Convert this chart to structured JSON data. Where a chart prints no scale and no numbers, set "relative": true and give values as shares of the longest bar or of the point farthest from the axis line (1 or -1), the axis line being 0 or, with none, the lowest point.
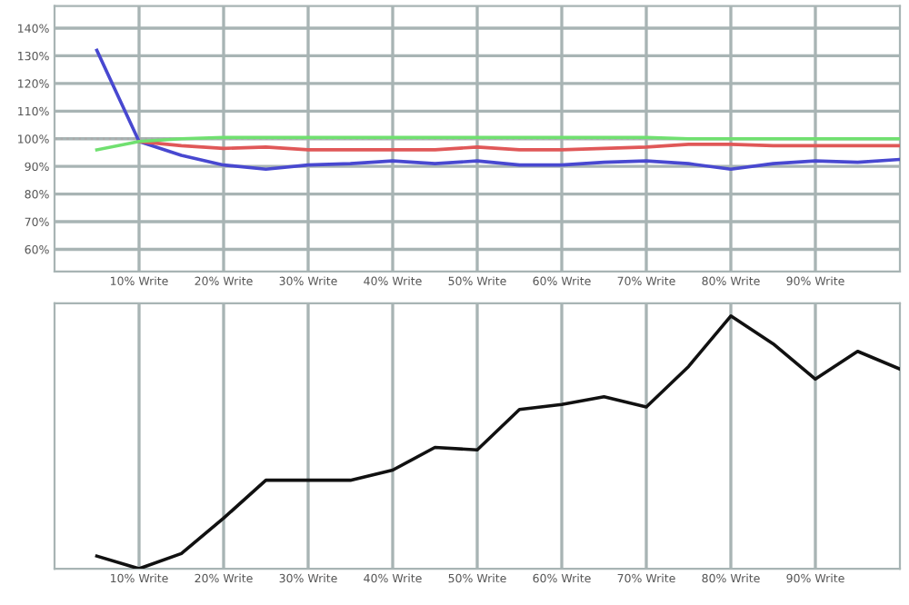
{
  "chart_data": [
    {
      "type": "line",
      "x": [
        5,
        10,
        15,
        20,
        25,
        30,
        35,
        40,
        45,
        50,
        55,
        60,
        65,
        70,
        75,
        80,
        85,
        90,
        95,
        100
      ],
      "series": [
        {
          "color": "#4848d0",
          "values": [
            132,
            99,
            94,
            90.5,
            89,
            90.5,
            91,
            92,
            91,
            92,
            90.5,
            90.5,
            91.5,
            92,
            91,
            89,
            91,
            92,
            91.5,
            92.5
          ]
        },
        {
          "color": "#e05858",
          "values": [
            null,
            99,
            97.5,
            96.5,
            97,
            96,
            96,
            96,
            96,
            97,
            96,
            96,
            96.5,
            97,
            98,
            98,
            97.5,
            97.5,
            97.5,
            97.5
          ]
        },
        {
          "color": "#70e070",
          "values": [
            96,
            99,
            100,
            100.5,
            100.5,
            100.5,
            100.5,
            100.5,
            100.5,
            100.5,
            100.5,
            100.5,
            100.5,
            100.5,
            100,
            100,
            100,
            100,
            100,
            100
          ]
        }
      ],
      "xlim": [
        0,
        100
      ],
      "ylim": [
        52,
        148
      ],
      "xticks": [
        {
          "value": 10,
          "label": "10% Write"
        },
        {
          "value": 20,
          "label": "20% Write"
        },
        {
          "value": 30,
          "label": "30% Write"
        },
        {
          "value": 40,
          "label": "40% Write"
        },
        {
          "value": 50,
          "label": "50% Write"
        },
        {
          "value": 60,
          "label": "60% Write"
        },
        {
          "value": 70,
          "label": "70% Write"
        },
        {
          "value": 80,
          "label": "80% Write"
        },
        {
          "value": 90,
          "label": "90% Write"
        }
      ],
      "yticks": [
        {
          "value": 60,
          "label": "60%"
        },
        {
          "value": 70,
          "label": "70%"
        },
        {
          "value": 80,
          "label": "80%"
        },
        {
          "value": 90,
          "label": "90%"
        },
        {
          "value": 100,
          "label": "100%"
        },
        {
          "value": 110,
          "label": "110%"
        },
        {
          "value": 120,
          "label": "120%"
        },
        {
          "value": 130,
          "label": "130%"
        },
        {
          "value": 140,
          "label": "140%"
        }
      ],
      "ref_lines": [
        {
          "axis": "y",
          "value": 100,
          "color": "#aaaaaa",
          "line_style": "dotted"
        }
      ],
      "grid": true,
      "legend": false
    },
    {
      "type": "line",
      "relative": true,
      "x": [
        5,
        10,
        15,
        20,
        25,
        30,
        35,
        40,
        45,
        50,
        55,
        60,
        65,
        70,
        75,
        80,
        85,
        90,
        95,
        100
      ],
      "series": [
        {
          "color": "#111111",
          "values": [
            0.05,
            0,
            0.06,
            0.2,
            0.35,
            0.35,
            0.35,
            0.39,
            0.48,
            0.47,
            0.63,
            0.65,
            0.68,
            0.64,
            0.8,
            1,
            0.89,
            0.75,
            0.86,
            0.79
          ]
        }
      ],
      "xlim": [
        0,
        100
      ],
      "xticks": [
        {
          "value": 10,
          "label": "10% Write"
        },
        {
          "value": 20,
          "label": "20% Write"
        },
        {
          "value": 30,
          "label": "30% Write"
        },
        {
          "value": 40,
          "label": "40% Write"
        },
        {
          "value": 50,
          "label": "50% Write"
        },
        {
          "value": 60,
          "label": "60% Write"
        },
        {
          "value": 70,
          "label": "70% Write"
        },
        {
          "value": 80,
          "label": "80% Write"
        },
        {
          "value": 90,
          "label": "90% Write"
        }
      ],
      "grid": "x",
      "legend": false
    }
  ]
}
